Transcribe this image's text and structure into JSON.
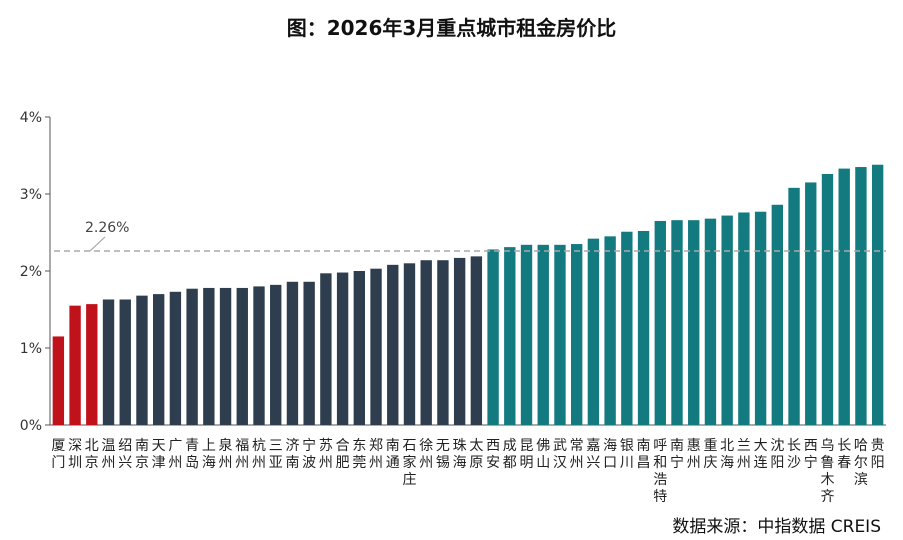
{
  "chart_data": {
    "type": "bar",
    "title": "图：2026年3月重点城市租金房价比",
    "source": "数据来源：中指数据 CREIS",
    "ylim": [
      0,
      4
    ],
    "yticks": [
      "0%",
      "1%",
      "2%",
      "3%",
      "4%"
    ],
    "reference_line": {
      "value": 2.26,
      "label": "2.26%"
    },
    "colors": {
      "low": "#c0121a",
      "mid": "#2e3e4e",
      "high": "#137a80",
      "reference": "#aaaaaa"
    },
    "categories": [
      "厦门",
      "深圳",
      "北京",
      "温州",
      "绍兴",
      "南京",
      "天津",
      "广州",
      "青岛",
      "上海",
      "泉州",
      "福州",
      "杭州",
      "三亚",
      "济南",
      "宁波",
      "苏州",
      "合肥",
      "东莞",
      "郑州",
      "南通",
      "石家庄",
      "徐州",
      "无锡",
      "珠海",
      "太原",
      "西安",
      "成都",
      "昆明",
      "佛山",
      "武汉",
      "常州",
      "嘉兴",
      "海口",
      "银川",
      "南昌",
      "呼和浩特",
      "南宁",
      "惠州",
      "重庆",
      "北海",
      "兰州",
      "大连",
      "沈阳",
      "长沙",
      "西宁",
      "乌鲁木齐",
      "长春",
      "哈尔滨",
      "贵阳"
    ],
    "values": [
      1.15,
      1.55,
      1.57,
      1.63,
      1.63,
      1.68,
      1.7,
      1.73,
      1.77,
      1.78,
      1.78,
      1.78,
      1.8,
      1.82,
      1.86,
      1.86,
      1.97,
      1.98,
      2.0,
      2.03,
      2.08,
      2.1,
      2.14,
      2.14,
      2.17,
      2.19,
      2.28,
      2.31,
      2.34,
      2.34,
      2.34,
      2.35,
      2.42,
      2.45,
      2.51,
      2.52,
      2.65,
      2.66,
      2.66,
      2.68,
      2.72,
      2.76,
      2.77,
      2.86,
      3.08,
      3.15,
      3.26,
      3.33,
      3.35,
      3.38
    ],
    "groups": [
      "low",
      "low",
      "low",
      "mid",
      "mid",
      "mid",
      "mid",
      "mid",
      "mid",
      "mid",
      "mid",
      "mid",
      "mid",
      "mid",
      "mid",
      "mid",
      "mid",
      "mid",
      "mid",
      "mid",
      "mid",
      "mid",
      "mid",
      "mid",
      "mid",
      "mid",
      "high",
      "high",
      "high",
      "high",
      "high",
      "high",
      "high",
      "high",
      "high",
      "high",
      "high",
      "high",
      "high",
      "high",
      "high",
      "high",
      "high",
      "high",
      "high",
      "high",
      "high",
      "high",
      "high",
      "high"
    ]
  }
}
